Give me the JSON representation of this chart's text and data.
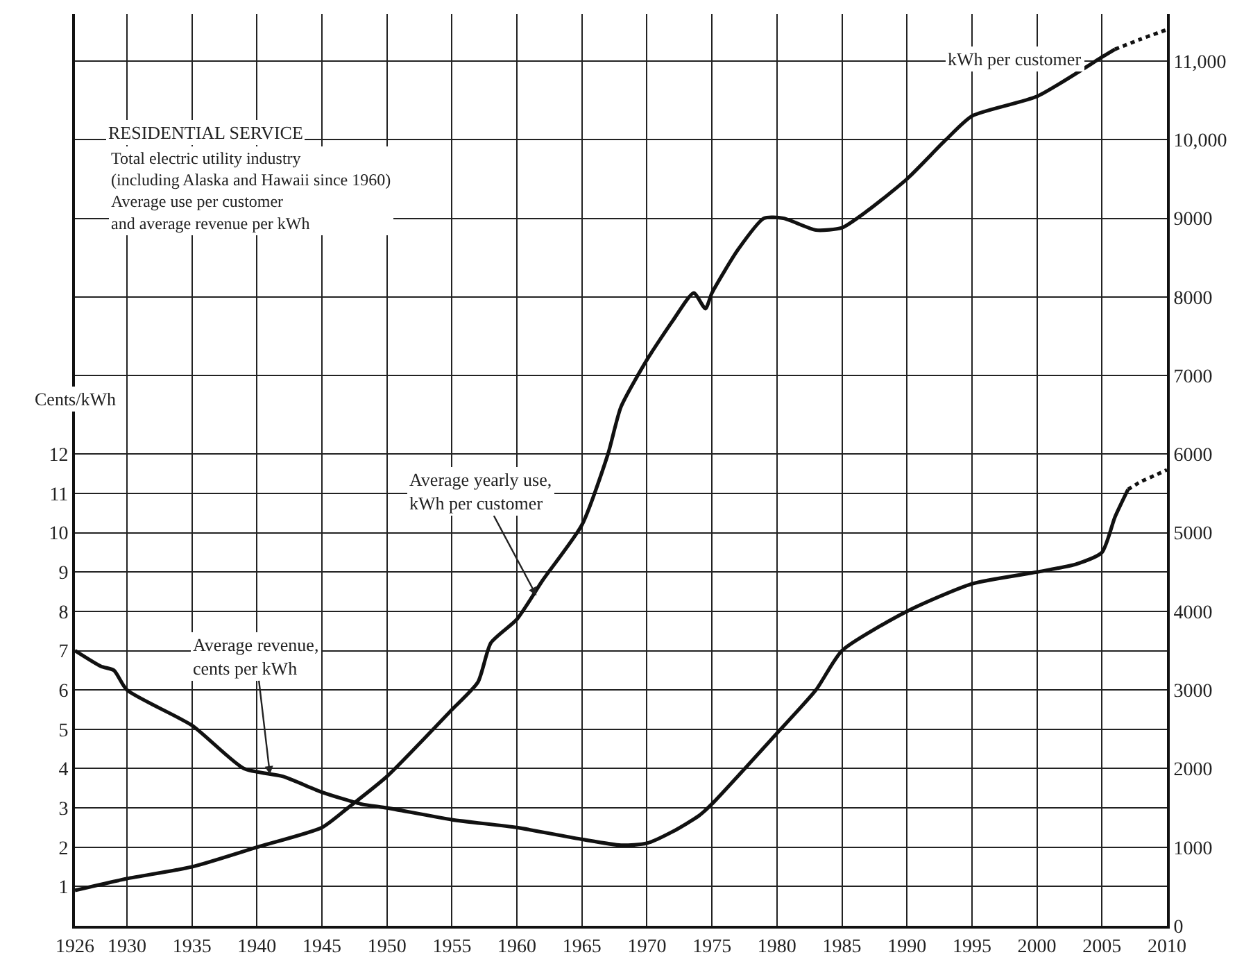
{
  "chart_data": {
    "type": "line",
    "title": "RESIDENTIAL SERVICE",
    "subtitle": "Total electric utility industry\n(including Alaska and Hawaii since 1960)\nAverage use per customer\nand average revenue per kWh",
    "ylabel": "Cents/kWh",
    "series": [
      {
        "color": "#111111",
        "axis": "y",
        "x": [
          1926,
          1928,
          1929,
          1930,
          1935,
          1939,
          1942,
          1945,
          1948,
          1950,
          1955,
          1960,
          1965,
          1968,
          1970,
          1972,
          1974,
          1975,
          1980,
          1983,
          1985,
          1990,
          1995,
          2000,
          2003,
          2005,
          2006,
          2007
        ],
        "values": [
          7.0,
          6.6,
          6.5,
          6.0,
          5.1,
          4.0,
          3.8,
          3.4,
          3.1,
          3.0,
          2.7,
          2.5,
          2.2,
          2.05,
          2.1,
          2.4,
          2.8,
          3.1,
          4.9,
          6.0,
          7.0,
          8.0,
          8.7,
          9.0,
          9.2,
          9.5,
          10.4,
          11.1
        ]
      },
      {
        "color": "#111111",
        "axis": "y",
        "line_style": "dotted",
        "x": [
          2007,
          2008,
          2009,
          2010
        ],
        "values": [
          11.1,
          11.3,
          11.45,
          11.6
        ]
      },
      {
        "color": "#111111",
        "axis": "y2",
        "x": [
          1926,
          1930,
          1935,
          1940,
          1945,
          1947,
          1950,
          1955,
          1957,
          1958,
          1960,
          1962,
          1965,
          1967,
          1968,
          1970,
          1972,
          1973.6,
          1974.5,
          1975,
          1977,
          1979,
          1980.5,
          1983,
          1985,
          1987,
          1990,
          1993,
          1995,
          2000,
          2005,
          2006
        ],
        "values": [
          450,
          600,
          750,
          1000,
          1250,
          1500,
          1900,
          2750,
          3100,
          3600,
          3900,
          4400,
          5100,
          6000,
          6600,
          7200,
          7700,
          8050,
          7850,
          8050,
          8600,
          9000,
          9000,
          8850,
          8880,
          9100,
          9500,
          10000,
          10300,
          10550,
          11050,
          11150
        ]
      },
      {
        "color": "#111111",
        "axis": "y2",
        "line_style": "dotted",
        "x": [
          2006,
          2008,
          2010
        ],
        "values": [
          11150,
          11280,
          11400
        ]
      }
    ],
    "xlim": [
      1926,
      2010
    ],
    "xticks": [
      1926,
      1930,
      1935,
      1940,
      1945,
      1950,
      1955,
      1960,
      1965,
      1970,
      1975,
      1980,
      1985,
      1990,
      1995,
      2000,
      2005,
      2010
    ],
    "ylim": [
      0,
      23.2
    ],
    "yticks": [
      1,
      2,
      3,
      4,
      5,
      6,
      7,
      8,
      9,
      10,
      11,
      12
    ],
    "y2lim": [
      0,
      11600
    ],
    "y2ticks": [
      0,
      1000,
      2000,
      3000,
      4000,
      5000,
      6000,
      7000,
      8000,
      9000,
      {
        "value": 10000,
        "label": "10,000"
      },
      {
        "value": 11000,
        "label": "11,000"
      }
    ],
    "grid": true,
    "line_style": "solid",
    "annotations": [
      {
        "text": "Average yearly use,\nkWh per customer",
        "x": 1961.5,
        "y": 8.4
      },
      {
        "text": "Average revenue,\ncents per kWh",
        "x": 1941,
        "y": 3.85
      },
      "kWh per customer"
    ]
  }
}
